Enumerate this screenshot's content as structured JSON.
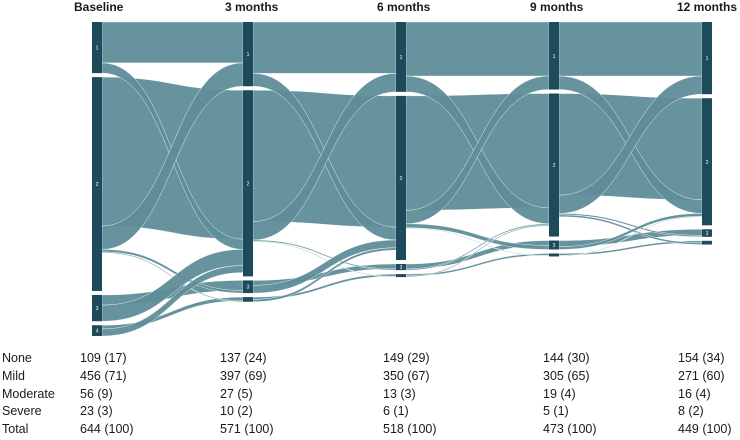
{
  "chart_data": {
    "type": "sankey",
    "timepoints": [
      "Baseline",
      "3 months",
      "6 months",
      "9 months",
      "12 months"
    ],
    "levels": [
      {
        "id": "1",
        "name": "None"
      },
      {
        "id": "2",
        "name": "Mild"
      },
      {
        "id": "3",
        "name": "Moderate"
      },
      {
        "id": "4",
        "name": "Severe"
      }
    ],
    "counts": [
      {
        "1": 109,
        "2": 456,
        "3": 56,
        "4": 23
      },
      {
        "1": 137,
        "2": 397,
        "3": 27,
        "4": 10
      },
      {
        "1": 149,
        "2": 350,
        "3": 13,
        "4": 6
      },
      {
        "1": 144,
        "2": 305,
        "3": 19,
        "4": 5
      },
      {
        "1": 154,
        "2": 271,
        "3": 16,
        "4": 8
      }
    ],
    "colors": {
      "node": "#1e4b5c",
      "link": "#5f8d99",
      "node_label": "#ffffff"
    }
  },
  "table": {
    "rows": [
      {
        "label": "None",
        "values": [
          "109 (17)",
          "137 (24)",
          "149 (29)",
          "144 (30)",
          "154 (34)"
        ]
      },
      {
        "label": "Mild",
        "values": [
          "456 (71)",
          "397 (69)",
          "350 (67)",
          "305 (65)",
          "271 (60)"
        ]
      },
      {
        "label": "Moderate",
        "values": [
          "56 (9)",
          "27 (5)",
          "13 (3)",
          "19 (4)",
          "16 (4)"
        ]
      },
      {
        "label": "Severe",
        "values": [
          "23 (3)",
          "10 (2)",
          "6 (1)",
          "5 (1)",
          "8 (2)"
        ]
      },
      {
        "label": "Total",
        "values": [
          "644 (100)",
          "571 (100)",
          "518 (100)",
          "473 (100)",
          "449 (100)"
        ]
      }
    ]
  }
}
